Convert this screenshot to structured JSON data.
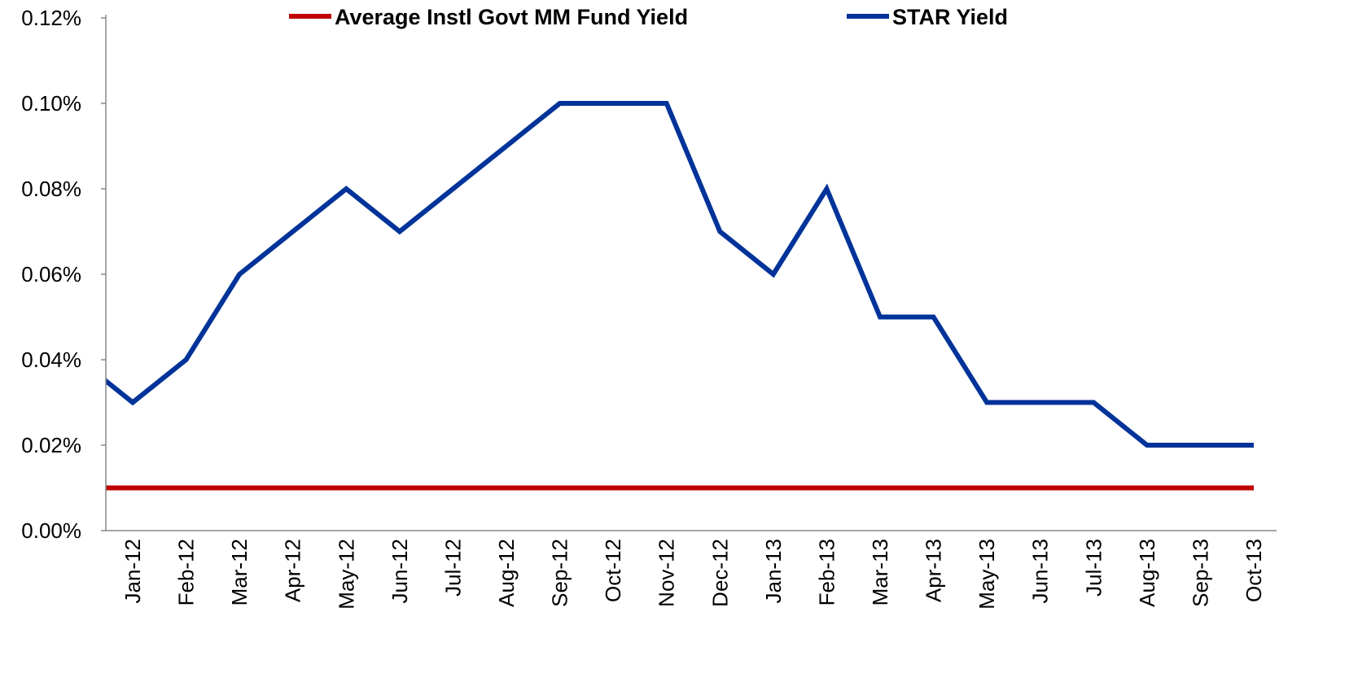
{
  "chart_data": {
    "type": "line",
    "categories": [
      null,
      "Jan-12",
      "Feb-12",
      "Mar-12",
      "Apr-12",
      "May-12",
      "Jun-12",
      "Jul-12",
      "Aug-12",
      "Sep-12",
      "Oct-12",
      "Nov-12",
      "Dec-12",
      "Jan-13",
      "Feb-13",
      "Mar-13",
      "Apr-13",
      "May-13",
      "Jun-13",
      "Jul-13",
      "Aug-13",
      "Sep-13",
      "Oct-13"
    ],
    "series": [
      {
        "name": "Average Instl Govt MM Fund Yield",
        "color": "#c00000",
        "values": [
          0.01,
          0.01,
          0.01,
          0.01,
          0.01,
          0.01,
          0.01,
          0.01,
          0.01,
          0.01,
          0.01,
          0.01,
          0.01,
          0.01,
          0.01,
          0.01,
          0.01,
          0.01,
          0.01,
          0.01,
          0.01,
          0.01,
          0.01
        ]
      },
      {
        "name": "STAR Yield",
        "color": "#003399",
        "values": [
          0.04,
          0.03,
          0.04,
          0.06,
          0.07,
          0.08,
          0.07,
          0.08,
          0.09,
          0.1,
          0.1,
          0.1,
          0.07,
          0.06,
          0.08,
          0.05,
          0.05,
          0.03,
          0.03,
          0.03,
          0.02,
          0.02,
          0.02
        ]
      }
    ],
    "ylim": [
      0,
      0.12
    ],
    "yticks": [
      {
        "value": 0,
        "label": "0.00%"
      },
      {
        "value": 0.02,
        "label": "0.02%"
      },
      {
        "value": 0.04,
        "label": "0.04%"
      },
      {
        "value": 0.06,
        "label": "0.06%"
      },
      {
        "value": 0.08,
        "label": "0.08%"
      },
      {
        "value": 0.1,
        "label": "0.10%"
      },
      {
        "value": 0.12,
        "label": "0.12%"
      }
    ],
    "legend": "top",
    "grid": false
  }
}
